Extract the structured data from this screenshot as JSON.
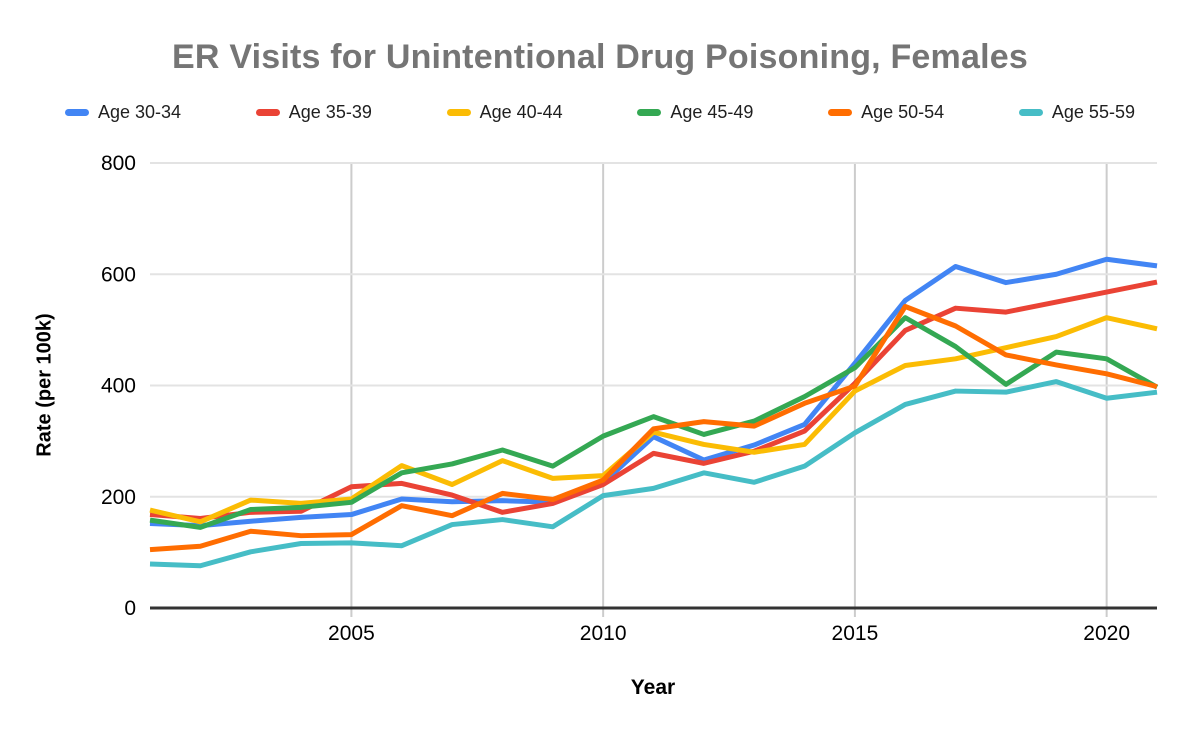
{
  "chart_data": {
    "type": "line",
    "title": "ER Visits for Unintentional Drug Poisoning, Females",
    "xlabel": "Year",
    "ylabel": "Rate (per 100k)",
    "x": [
      2001,
      2002,
      2003,
      2004,
      2005,
      2006,
      2007,
      2008,
      2009,
      2010,
      2011,
      2012,
      2013,
      2014,
      2015,
      2016,
      2017,
      2018,
      2019,
      2020,
      2021
    ],
    "xlim": [
      2001,
      2021
    ],
    "ylim": [
      0,
      800
    ],
    "xticks": [
      2005,
      2010,
      2015,
      2020
    ],
    "yticks": [
      0,
      200,
      400,
      600,
      800
    ],
    "grid": true,
    "legend_position": "top",
    "series": [
      {
        "name": "Age 30-34",
        "color": "#4285F4",
        "values": [
          152,
          148,
          156,
          163,
          168,
          196,
          191,
          193,
          190,
          225,
          308,
          266,
          293,
          330,
          440,
          553,
          614,
          585,
          600,
          627,
          615
        ]
      },
      {
        "name": "Age 35-39",
        "color": "#EA4335",
        "values": [
          168,
          161,
          172,
          174,
          218,
          224,
          203,
          172,
          188,
          222,
          278,
          260,
          282,
          318,
          404,
          499,
          539,
          532,
          550,
          568,
          586
        ]
      },
      {
        "name": "Age 40-44",
        "color": "#FBBC04",
        "values": [
          176,
          155,
          194,
          188,
          196,
          256,
          222,
          265,
          233,
          238,
          316,
          294,
          280,
          294,
          390,
          436,
          448,
          468,
          488,
          522,
          502
        ]
      },
      {
        "name": "Age 45-49",
        "color": "#34A853",
        "values": [
          158,
          145,
          177,
          181,
          190,
          243,
          259,
          284,
          255,
          309,
          344,
          312,
          336,
          380,
          432,
          522,
          470,
          402,
          460,
          448,
          397
        ]
      },
      {
        "name": "Age 50-54",
        "color": "#FF6D01",
        "values": [
          105,
          111,
          138,
          130,
          132,
          184,
          166,
          206,
          195,
          230,
          322,
          335,
          327,
          368,
          399,
          542,
          507,
          455,
          437,
          421,
          398
        ]
      },
      {
        "name": "Age 55-59",
        "color": "#46BDC6",
        "values": [
          79,
          76,
          101,
          116,
          117,
          112,
          150,
          159,
          146,
          202,
          215,
          243,
          226,
          255,
          315,
          366,
          390,
          388,
          407,
          377,
          388
        ]
      }
    ]
  },
  "colors": {
    "background": "#FFFFFF",
    "title_text": "#757575",
    "legend_text": "#1F1F1F",
    "axis_text": "#000000",
    "gridline": "#E3E3E3",
    "vertical_gridline": "#CCCCCC",
    "baseline": "#333333"
  }
}
